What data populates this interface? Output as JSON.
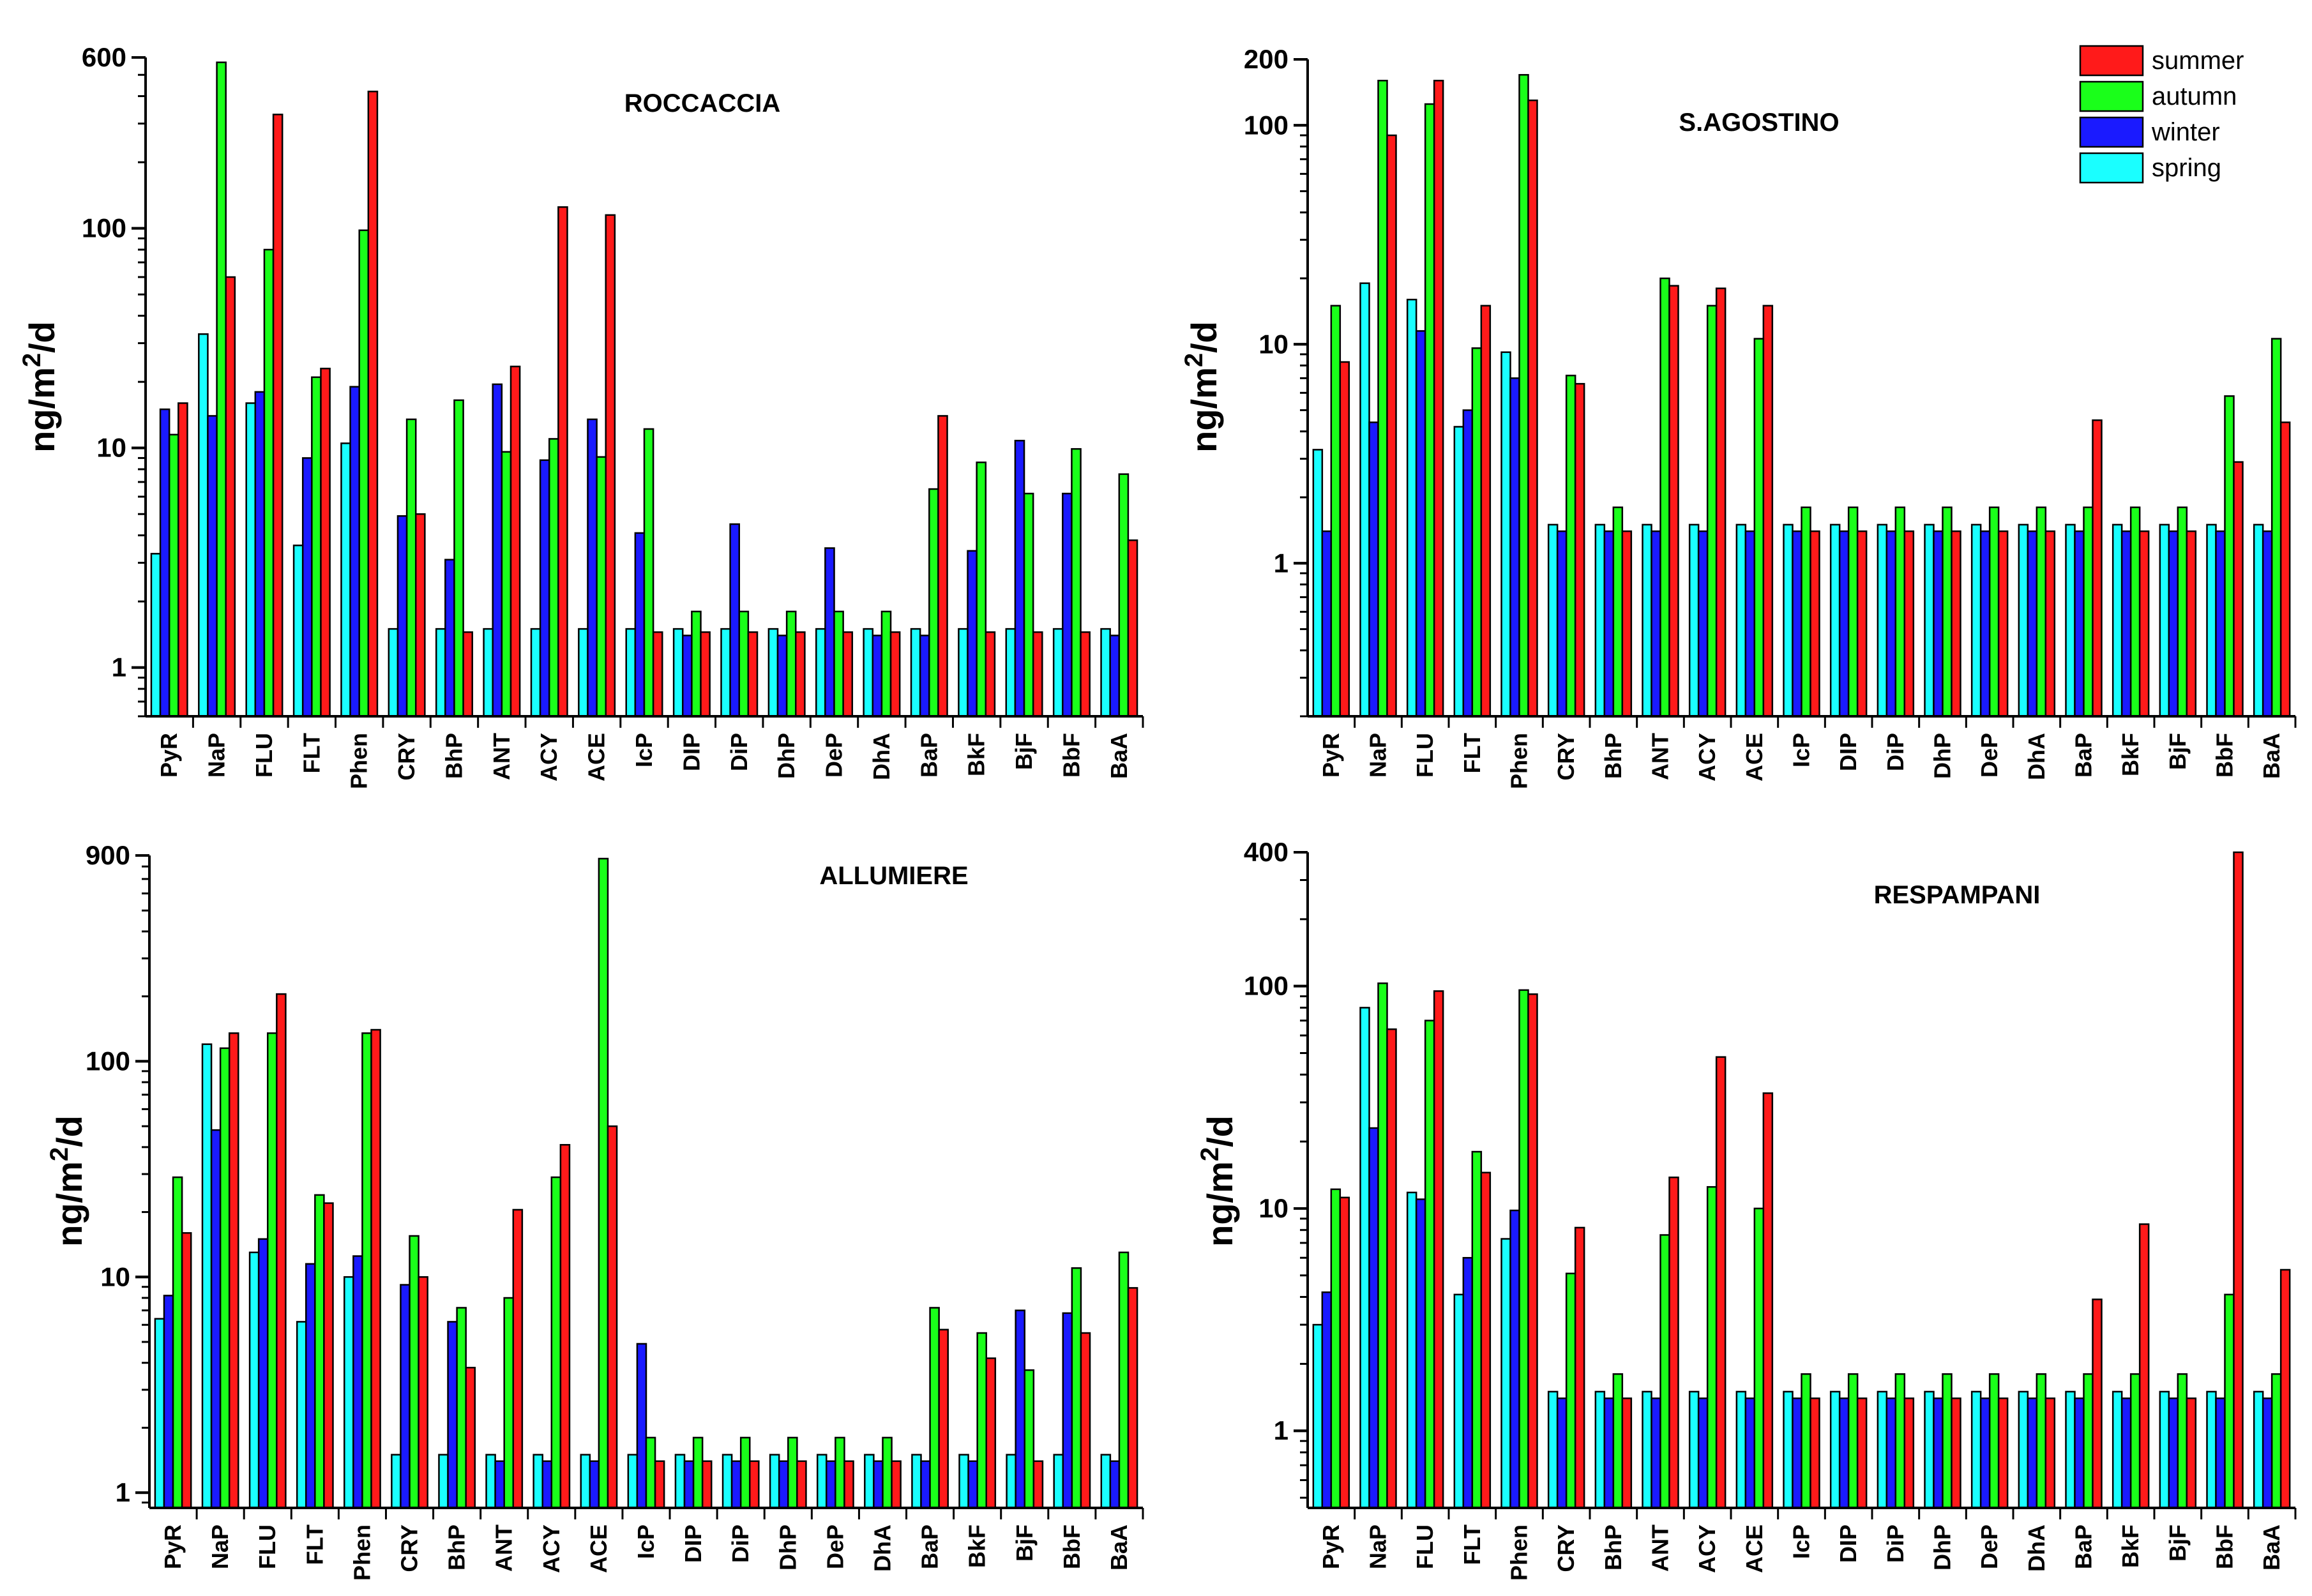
{
  "seasons": [
    "spring",
    "winter",
    "autumn",
    "summer"
  ],
  "legend": {
    "placement": "top-right",
    "entries": [
      {
        "label": "summer",
        "color": "#ff1a1a"
      },
      {
        "label": "autumn",
        "color": "#1aff1a"
      },
      {
        "label": "winter",
        "color": "#1a1aff"
      },
      {
        "label": "spring",
        "color": "#1affff"
      }
    ]
  },
  "colors": {
    "spring": "#1affff",
    "winter": "#1a1aff",
    "autumn": "#1aff1a",
    "summer": "#ff1a1a"
  },
  "chart_data": [
    {
      "type": "bar",
      "title": "ROCCACCIA",
      "ylabel": "ng/m²/d",
      "ylabel_main": "ng/m",
      "ylabel_sup": "2",
      "ylabel_tail": "/d",
      "yscale": "log",
      "ylim": [
        0.6,
        600
      ],
      "yticks": [
        1,
        10,
        100,
        600
      ],
      "ytick_labels": [
        "1",
        "10",
        "100",
        "600"
      ],
      "categories": [
        "PyR",
        "NaP",
        "FLU",
        "FLT",
        "Phen",
        "CRY",
        "BhP",
        "ANT",
        "ACY",
        "ACE",
        "IcP",
        "DIP",
        "DiP",
        "DhP",
        "DeP",
        "DhA",
        "BaP",
        "BkF",
        "BjF",
        "BbF",
        "BaA"
      ],
      "series": [
        {
          "name": "spring",
          "values": [
            3.3,
            33,
            16,
            3.6,
            10.5,
            1.5,
            1.5,
            1.5,
            1.5,
            1.5,
            1.5,
            1.5,
            1.5,
            1.5,
            1.5,
            1.5,
            1.5,
            1.5,
            1.5,
            1.5,
            1.5
          ]
        },
        {
          "name": "winter",
          "values": [
            15,
            14,
            18,
            9,
            19,
            4.9,
            3.1,
            19.5,
            8.8,
            13.5,
            4.1,
            1.4,
            4.5,
            1.4,
            3.5,
            1.4,
            1.4,
            3.4,
            10.8,
            6.2,
            1.4
          ]
        },
        {
          "name": "autumn",
          "values": [
            11.5,
            570,
            80,
            21,
            98,
            13.5,
            16.5,
            9.6,
            11,
            9.1,
            12.2,
            1.8,
            1.8,
            1.8,
            1.8,
            1.8,
            6.5,
            8.6,
            6.2,
            9.9,
            7.6
          ]
        },
        {
          "name": "summer",
          "values": [
            16,
            60,
            330,
            23,
            420,
            5,
            1.45,
            23.5,
            125,
            115,
            1.45,
            1.45,
            1.45,
            1.45,
            1.45,
            1.45,
            14,
            1.45,
            1.45,
            1.45,
            3.8
          ]
        }
      ]
    },
    {
      "type": "bar",
      "title": "S.AGOSTINO",
      "ylabel": "ng/m²/d",
      "ylabel_main": "ng/m",
      "ylabel_sup": "2",
      "ylabel_tail": "/d",
      "yscale": "log",
      "ylim": [
        0.2,
        200
      ],
      "yticks": [
        1,
        10,
        100,
        200
      ],
      "ytick_labels": [
        "1",
        "10",
        "100",
        "200"
      ],
      "categories": [
        "PyR",
        "NaP",
        "FLU",
        "FLT",
        "Phen",
        "CRY",
        "BhP",
        "ANT",
        "ACY",
        "ACE",
        "IcP",
        "DIP",
        "DiP",
        "DhP",
        "DeP",
        "DhA",
        "BaP",
        "BkF",
        "BjF",
        "BbF",
        "BaA"
      ],
      "series": [
        {
          "name": "spring",
          "values": [
            3.3,
            19,
            16,
            4.2,
            9.2,
            1.5,
            1.5,
            1.5,
            1.5,
            1.5,
            1.5,
            1.5,
            1.5,
            1.5,
            1.5,
            1.5,
            1.5,
            1.5,
            1.5,
            1.5,
            1.5
          ]
        },
        {
          "name": "winter",
          "values": [
            1.4,
            4.4,
            11.5,
            5,
            7,
            1.4,
            1.4,
            1.4,
            1.4,
            1.4,
            1.4,
            1.4,
            1.4,
            1.4,
            1.4,
            1.4,
            1.4,
            1.4,
            1.4,
            1.4,
            1.4
          ]
        },
        {
          "name": "autumn",
          "values": [
            15,
            160,
            125,
            9.6,
            170,
            7.2,
            1.8,
            20,
            15,
            10.6,
            1.8,
            1.8,
            1.8,
            1.8,
            1.8,
            1.8,
            1.8,
            1.8,
            1.8,
            5.8,
            10.6
          ]
        },
        {
          "name": "summer",
          "values": [
            8.3,
            90,
            160,
            15,
            130,
            6.6,
            1.4,
            18.5,
            18,
            15,
            1.4,
            1.4,
            1.4,
            1.4,
            1.4,
            1.4,
            4.5,
            1.4,
            1.4,
            2.9,
            4.4
          ]
        }
      ]
    },
    {
      "type": "bar",
      "title": "ALLUMIERE",
      "ylabel": "ng/m²/d",
      "ylabel_main": "ng/m",
      "ylabel_sup": "2",
      "ylabel_tail": "/d",
      "yscale": "log",
      "ylim": [
        0.85,
        900
      ],
      "yticks": [
        1,
        10,
        100,
        900
      ],
      "ytick_labels": [
        "1",
        "10",
        "100",
        "900"
      ],
      "categories": [
        "PyR",
        "NaP",
        "FLU",
        "FLT",
        "Phen",
        "CRY",
        "BhP",
        "ANT",
        "ACY",
        "ACE",
        "IcP",
        "DIP",
        "DiP",
        "DhP",
        "DeP",
        "DhA",
        "BaP",
        "BkF",
        "BjF",
        "BbF",
        "BaA"
      ],
      "series": [
        {
          "name": "spring",
          "values": [
            6.4,
            120,
            13,
            6.2,
            10,
            1.5,
            1.5,
            1.5,
            1.5,
            1.5,
            1.5,
            1.5,
            1.5,
            1.5,
            1.5,
            1.5,
            1.5,
            1.5,
            1.5,
            1.5,
            1.5
          ]
        },
        {
          "name": "winter",
          "values": [
            8.2,
            48,
            15,
            11.5,
            12.5,
            9.2,
            6.2,
            1.4,
            1.4,
            1.4,
            4.9,
            1.4,
            1.4,
            1.4,
            1.4,
            1.4,
            1.4,
            1.4,
            7,
            6.8,
            1.4
          ]
        },
        {
          "name": "autumn",
          "values": [
            29,
            115,
            135,
            24,
            135,
            15.5,
            7.2,
            8,
            29,
            870,
            1.8,
            1.8,
            1.8,
            1.8,
            1.8,
            1.8,
            7.2,
            5.5,
            3.7,
            11,
            13
          ]
        },
        {
          "name": "summer",
          "values": [
            16,
            135,
            205,
            22,
            140,
            10,
            3.8,
            20.5,
            41,
            50,
            1.4,
            1.4,
            1.4,
            1.4,
            1.4,
            1.4,
            5.7,
            4.2,
            1.4,
            5.5,
            8.9
          ]
        }
      ]
    },
    {
      "type": "bar",
      "title": "RESPAMPANI",
      "ylabel": "ng/m²/d",
      "ylabel_main": "ng/m",
      "ylabel_sup": "2",
      "ylabel_tail": "/d",
      "yscale": "log",
      "ylim": [
        0.45,
        400
      ],
      "yticks": [
        1,
        10,
        100,
        400
      ],
      "ytick_labels": [
        "1",
        "10",
        "100",
        "400"
      ],
      "categories": [
        "PyR",
        "NaP",
        "FLU",
        "FLT",
        "Phen",
        "CRY",
        "BhP",
        "ANT",
        "ACY",
        "ACE",
        "IcP",
        "DIP",
        "DiP",
        "DhP",
        "DeP",
        "DhA",
        "BaP",
        "BkF",
        "BjF",
        "BbF",
        "BaA"
      ],
      "series": [
        {
          "name": "spring",
          "values": [
            3.0,
            80,
            11.8,
            4.1,
            7.3,
            1.5,
            1.5,
            1.5,
            1.5,
            1.5,
            1.5,
            1.5,
            1.5,
            1.5,
            1.5,
            1.5,
            1.5,
            1.5,
            1.5,
            1.5,
            1.5
          ]
        },
        {
          "name": "winter",
          "values": [
            4.2,
            23,
            11,
            6,
            9.8,
            1.4,
            1.4,
            1.4,
            1.4,
            1.4,
            1.4,
            1.4,
            1.4,
            1.4,
            1.4,
            1.4,
            1.4,
            1.4,
            1.4,
            1.4,
            1.4
          ]
        },
        {
          "name": "autumn",
          "values": [
            12.2,
            103,
            70,
            18,
            96,
            5.1,
            1.8,
            7.6,
            12.5,
            10,
            1.8,
            1.8,
            1.8,
            1.8,
            1.8,
            1.8,
            1.8,
            1.8,
            1.8,
            4.1,
            1.8
          ]
        },
        {
          "name": "summer",
          "values": [
            11.2,
            64,
            95,
            14.5,
            92,
            8.2,
            1.4,
            13.8,
            48,
            33,
            1.4,
            1.4,
            1.4,
            1.4,
            1.4,
            1.4,
            3.9,
            8.5,
            1.4,
            400,
            5.3
          ]
        }
      ]
    }
  ]
}
